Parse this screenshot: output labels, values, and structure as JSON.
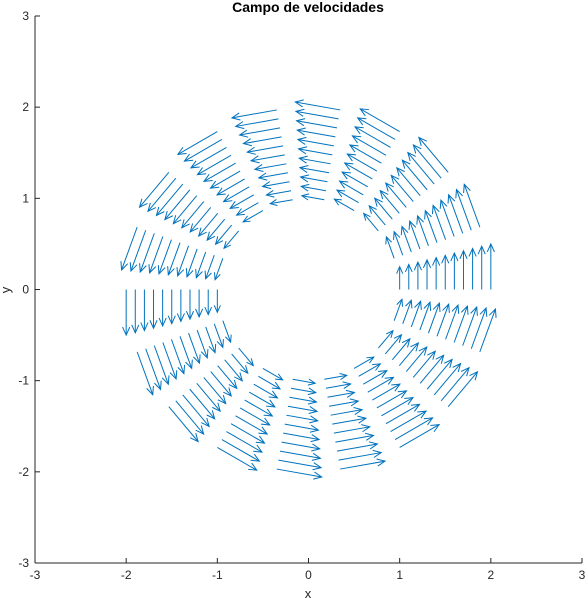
{
  "chart_data": {
    "type": "quiver",
    "title": "Campo de velocidades",
    "xlabel": "x",
    "ylabel": "y",
    "xlim": [
      -3,
      3
    ],
    "ylim": [
      -3,
      3
    ],
    "xticks": [
      "-3",
      "-2",
      "-1",
      "0",
      "1",
      "2",
      "3"
    ],
    "yticks": [
      "-3",
      "-2",
      "-1",
      "0",
      "1",
      "2",
      "3"
    ],
    "grid": false,
    "arrow_color": "#0072BD",
    "field": {
      "description_of_grid": "polar grid of arrows",
      "r": [
        1.0,
        1.1,
        1.2,
        1.3,
        1.4,
        1.5,
        1.6,
        1.7,
        1.8,
        1.9,
        2.0
      ],
      "theta_deg": [
        0,
        20,
        40,
        60,
        80,
        100,
        120,
        140,
        160,
        180,
        200,
        220,
        240,
        260,
        280,
        300,
        320,
        340
      ],
      "u_formula": "-y",
      "v_formula": "x",
      "arrow_scale": 0.25
    }
  }
}
